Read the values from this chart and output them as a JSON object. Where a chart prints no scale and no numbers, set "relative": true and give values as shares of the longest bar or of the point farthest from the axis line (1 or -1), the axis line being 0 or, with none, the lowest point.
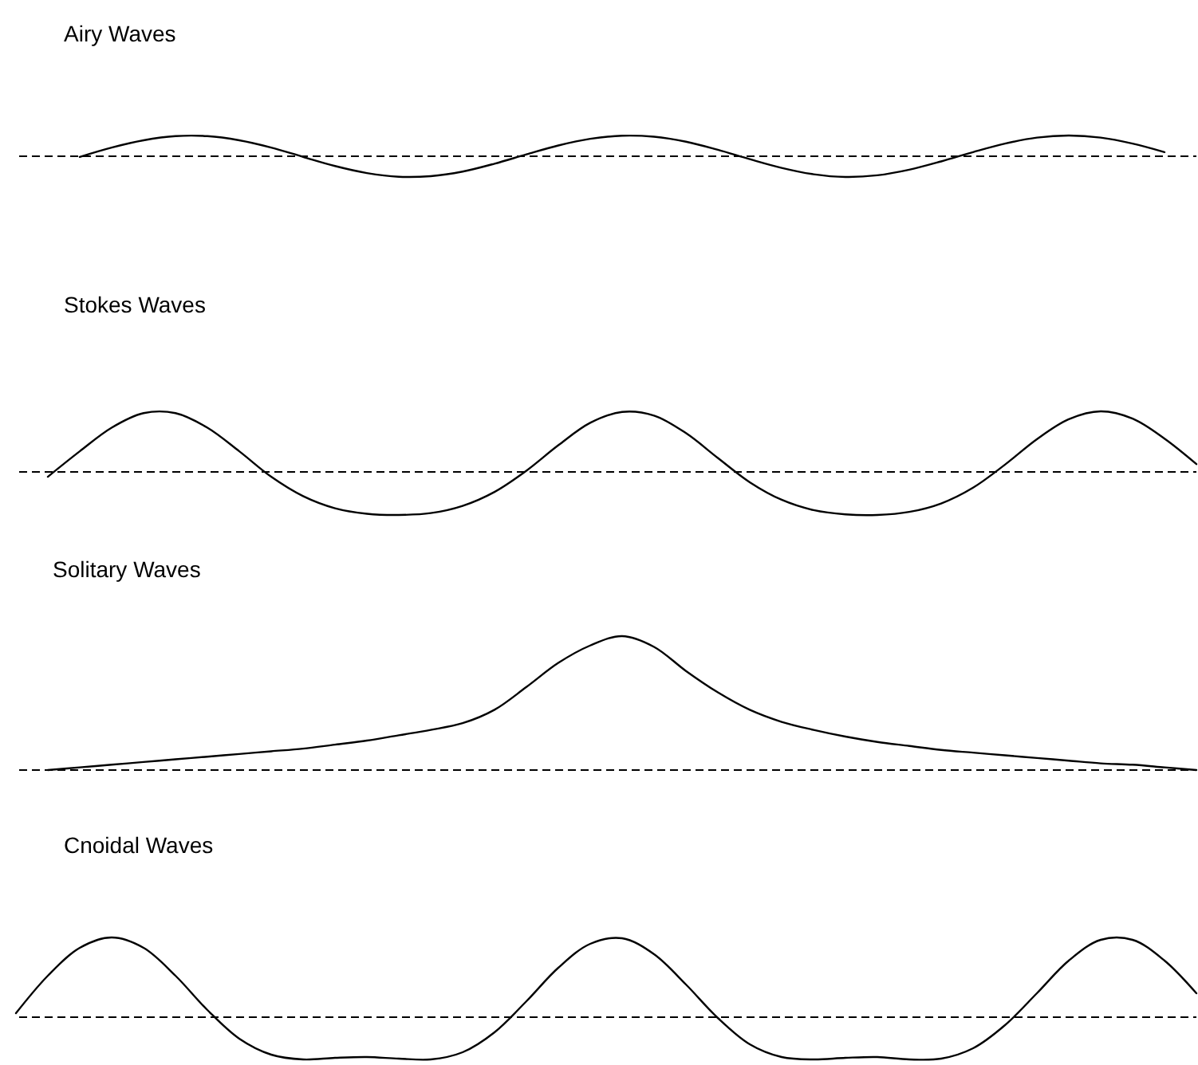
{
  "chart_data": [
    {
      "type": "line",
      "title": "Airy Waves",
      "relative": true,
      "categories": [
        null,
        null,
        null,
        null,
        null,
        null,
        null,
        null,
        null,
        null,
        null,
        null,
        null,
        null,
        null,
        null,
        null,
        null,
        null,
        null,
        null,
        null,
        null,
        null,
        null,
        null,
        null,
        null,
        null,
        null,
        null,
        null,
        null,
        null,
        null,
        null,
        null,
        null
      ],
      "series": [
        {
          "color": "#000000",
          "values": [
            null,
            null,
            -0.03,
            0.42,
            0.77,
            0.97,
            0.97,
            0.77,
            0.42,
            -0.03,
            -0.47,
            -0.81,
            -0.99,
            -0.96,
            -0.74,
            -0.36,
            0.09,
            0.52,
            0.84,
            0.99,
            0.94,
            0.7,
            0.31,
            -0.14,
            -0.56,
            -0.87,
            -1.0,
            -0.92,
            -0.65,
            -0.25,
            0.2,
            0.61,
            0.9,
            1.0,
            0.9,
            0.61,
            0.2,
            null
          ]
        }
      ],
      "ref_lines": [
        {
          "axis": "y",
          "value": 0,
          "color": "#000000",
          "line_style": "dashed"
        }
      ]
    },
    {
      "type": "line",
      "title": "Stokes Waves",
      "relative": true,
      "categories": [
        null,
        null,
        null,
        null,
        null,
        null,
        null,
        null,
        null,
        null,
        null,
        null,
        null,
        null,
        null,
        null,
        null,
        null,
        null,
        null,
        null,
        null,
        null,
        null,
        null,
        null,
        null,
        null,
        null,
        null,
        null,
        null,
        null,
        null,
        null,
        null,
        null,
        null
      ],
      "series": [
        {
          "color": "#000000",
          "values": [
            null,
            -0.08,
            0.34,
            0.73,
            0.97,
            0.97,
            0.73,
            0.34,
            -0.08,
            -0.4,
            -0.6,
            -0.69,
            -0.71,
            -0.68,
            -0.56,
            -0.33,
            0.02,
            0.44,
            0.81,
            0.99,
            0.93,
            0.64,
            0.23,
            -0.17,
            -0.46,
            -0.63,
            -0.7,
            -0.71,
            -0.66,
            -0.52,
            -0.26,
            0.12,
            0.54,
            0.87,
            1.0,
            0.88,
            0.55,
            0.13
          ]
        }
      ],
      "ref_lines": [
        {
          "axis": "y",
          "value": 0,
          "color": "#000000",
          "line_style": "dashed"
        }
      ]
    },
    {
      "type": "line",
      "title": "Solitary Waves",
      "relative": true,
      "categories": [
        null,
        null,
        null,
        null,
        null,
        null,
        null,
        null,
        null,
        null,
        null,
        null,
        null,
        null,
        null,
        null,
        null,
        null,
        null,
        null,
        null,
        null,
        null,
        null,
        null,
        null,
        null,
        null,
        null,
        null,
        null,
        null,
        null,
        null,
        null,
        null,
        null,
        null
      ],
      "series": [
        {
          "color": "#000000",
          "values": [
            null,
            0.0,
            0.02,
            0.04,
            0.06,
            0.08,
            0.1,
            0.12,
            0.14,
            0.16,
            0.19,
            0.22,
            0.26,
            0.3,
            0.35,
            0.45,
            0.62,
            0.8,
            0.93,
            1.0,
            0.92,
            0.74,
            0.58,
            0.45,
            0.36,
            0.3,
            0.25,
            0.21,
            0.18,
            0.15,
            0.13,
            0.11,
            0.09,
            0.07,
            0.05,
            0.04,
            0.02,
            0.0
          ]
        }
      ],
      "ref_lines": [
        {
          "axis": "y",
          "value": 0,
          "color": "#000000",
          "line_style": "dashed"
        }
      ]
    },
    {
      "type": "line",
      "title": "Cnoidal Waves",
      "relative": true,
      "categories": [
        null,
        null,
        null,
        null,
        null,
        null,
        null,
        null,
        null,
        null,
        null,
        null,
        null,
        null,
        null,
        null,
        null,
        null,
        null,
        null,
        null,
        null,
        null,
        null,
        null,
        null,
        null,
        null,
        null,
        null,
        null,
        null,
        null,
        null,
        null,
        null,
        null,
        null
      ],
      "series": [
        {
          "color": "#000000",
          "values": [
            0.05,
            0.52,
            0.87,
            1.0,
            0.87,
            0.52,
            0.09,
            -0.27,
            -0.47,
            -0.53,
            -0.51,
            -0.5,
            -0.52,
            -0.53,
            -0.44,
            -0.19,
            0.2,
            0.62,
            0.92,
            0.99,
            0.79,
            0.41,
            -0.01,
            -0.34,
            -0.5,
            -0.53,
            -0.51,
            -0.5,
            -0.53,
            -0.52,
            -0.39,
            -0.1,
            0.3,
            0.71,
            0.97,
            0.97,
            0.71,
            0.3
          ]
        }
      ],
      "ref_lines": [
        {
          "axis": "y",
          "value": 0,
          "color": "#000000",
          "line_style": "dashed"
        }
      ]
    }
  ]
}
